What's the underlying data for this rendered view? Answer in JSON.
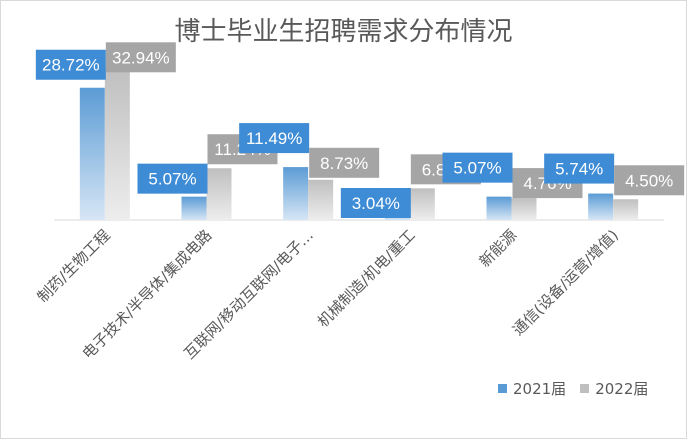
{
  "chart_data": {
    "type": "bar",
    "title": "博士毕业生招聘需求分布情况",
    "categories": [
      "制药/生物工程",
      "电子技术/半导体/集成电路",
      "互联网/移动互联网/电子…",
      "机械制造/机电/重工",
      "新能源",
      "通信(设备/运营/增值)"
    ],
    "series": [
      {
        "name": "2021届",
        "values": [
          28.72,
          5.07,
          11.49,
          3.04,
          5.07,
          5.74
        ],
        "labels": [
          "28.72%",
          "5.07%",
          "11.49%",
          "3.04%",
          "5.07%",
          "5.74%"
        ],
        "color": "#5b9bd5",
        "label_bg": "#3e8bd6"
      },
      {
        "name": "2022届",
        "values": [
          32.94,
          11.24,
          8.73,
          6.88,
          4.76,
          4.5
        ],
        "labels": [
          "32.94%",
          "11.24%",
          "8.73%",
          "6.88%",
          "4.76%",
          "4.50%"
        ],
        "color": "#bfbfbf",
        "label_bg": "#a5a5a5"
      }
    ],
    "ylim": [
      0,
      38
    ],
    "grid": false,
    "legend": "bottom-right"
  }
}
